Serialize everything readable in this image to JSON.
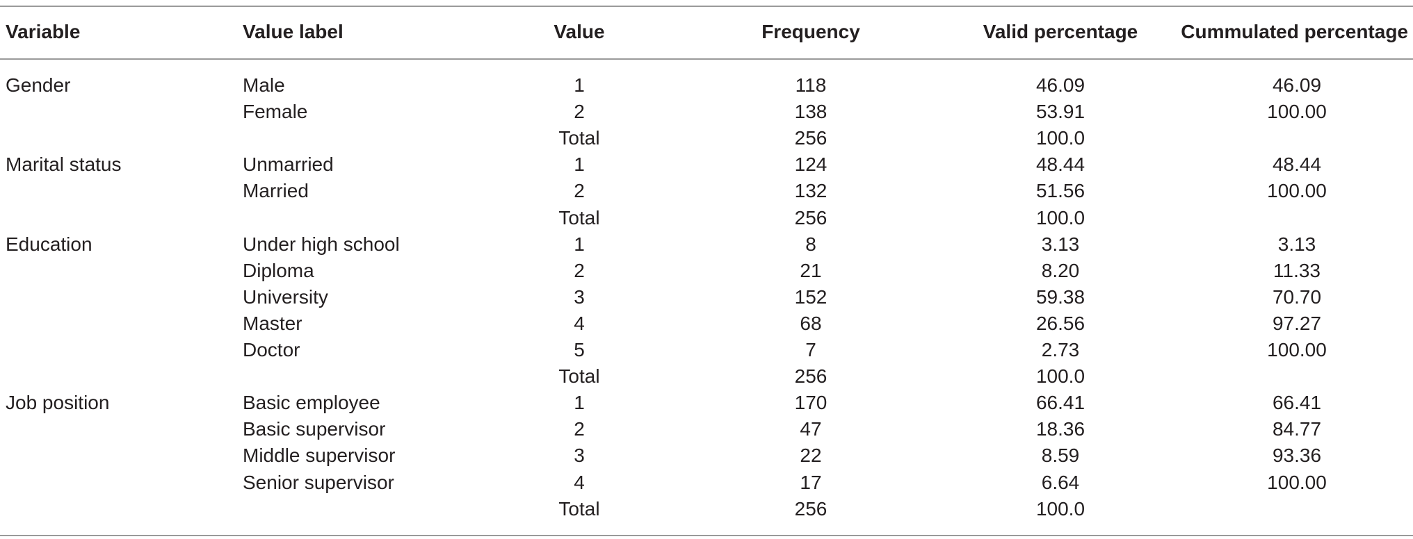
{
  "table": {
    "headers": [
      "Variable",
      "Value label",
      "Value",
      "Frequency",
      "Valid percentage",
      "Cummulated percentage"
    ],
    "rows": [
      {
        "variable": "Gender",
        "label": "Male",
        "value": "1",
        "frequency": "118",
        "valid": "46.09",
        "cumulated": "46.09"
      },
      {
        "variable": "",
        "label": "Female",
        "value": "2",
        "frequency": "138",
        "valid": "53.91",
        "cumulated": "100.00"
      },
      {
        "variable": "",
        "label": "",
        "value": "Total",
        "frequency": "256",
        "valid": "100.0",
        "cumulated": ""
      },
      {
        "variable": "Marital status",
        "label": "Unmarried",
        "value": "1",
        "frequency": "124",
        "valid": "48.44",
        "cumulated": "48.44"
      },
      {
        "variable": "",
        "label": "Married",
        "value": "2",
        "frequency": "132",
        "valid": "51.56",
        "cumulated": "100.00"
      },
      {
        "variable": "",
        "label": "",
        "value": "Total",
        "frequency": "256",
        "valid": "100.0",
        "cumulated": ""
      },
      {
        "variable": "Education",
        "label": "Under high school",
        "value": "1",
        "frequency": "8",
        "valid": "3.13",
        "cumulated": "3.13"
      },
      {
        "variable": "",
        "label": "Diploma",
        "value": "2",
        "frequency": "21",
        "valid": "8.20",
        "cumulated": "11.33"
      },
      {
        "variable": "",
        "label": "University",
        "value": "3",
        "frequency": "152",
        "valid": "59.38",
        "cumulated": "70.70"
      },
      {
        "variable": "",
        "label": "Master",
        "value": "4",
        "frequency": "68",
        "valid": "26.56",
        "cumulated": "97.27"
      },
      {
        "variable": "",
        "label": "Doctor",
        "value": "5",
        "frequency": "7",
        "valid": "2.73",
        "cumulated": "100.00"
      },
      {
        "variable": "",
        "label": "",
        "value": "Total",
        "frequency": "256",
        "valid": "100.0",
        "cumulated": ""
      },
      {
        "variable": "Job position",
        "label": "Basic employee",
        "value": "1",
        "frequency": "170",
        "valid": "66.41",
        "cumulated": "66.41"
      },
      {
        "variable": "",
        "label": "Basic supervisor",
        "value": "2",
        "frequency": "47",
        "valid": "18.36",
        "cumulated": "84.77"
      },
      {
        "variable": "",
        "label": "Middle supervisor",
        "value": "3",
        "frequency": "22",
        "valid": "8.59",
        "cumulated": "93.36"
      },
      {
        "variable": "",
        "label": "Senior supervisor",
        "value": "4",
        "frequency": "17",
        "valid": "6.64",
        "cumulated": "100.00"
      },
      {
        "variable": "",
        "label": "",
        "value": "Total",
        "frequency": "256",
        "valid": "100.0",
        "cumulated": ""
      }
    ]
  },
  "colors": {
    "text": "#231f20",
    "rule": "#9a9a9a"
  }
}
